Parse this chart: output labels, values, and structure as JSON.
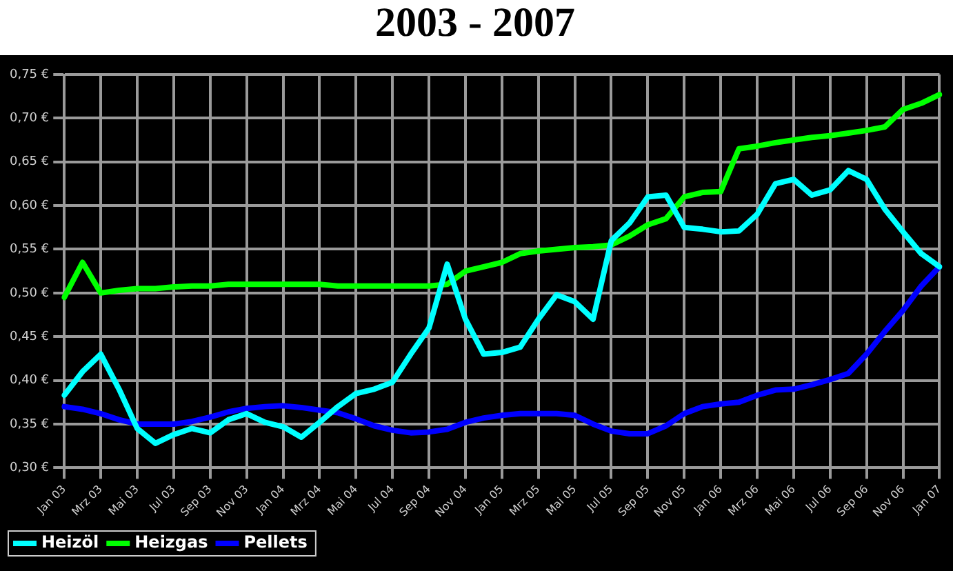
{
  "chart_data": {
    "type": "line",
    "title": "2003 - 2007",
    "categories": [
      "Jan 03",
      null,
      "Mrz 03",
      null,
      "Mai 03",
      null,
      "Jul 03",
      null,
      "Sep 03",
      null,
      "Nov 03",
      null,
      "Jan 04",
      null,
      "Mrz 04",
      null,
      "Mai 04",
      null,
      "Jul 04",
      null,
      "Sep 04",
      null,
      "Nov 04",
      null,
      "Jan 05",
      null,
      "Mrz 05",
      null,
      "Mai 05",
      null,
      "Jul 05",
      null,
      "Sep 05",
      null,
      "Nov 05",
      null,
      "Jan 06",
      null,
      "Mrz 06",
      null,
      "Mai 06",
      null,
      "Jul 06",
      null,
      "Sep 06",
      null,
      "Nov 06",
      null,
      "Jan 07"
    ],
    "series": [
      {
        "name": "Heizöl",
        "color": "#00ffff",
        "values": [
          0.383,
          0.41,
          0.43,
          0.39,
          0.345,
          0.328,
          0.338,
          0.345,
          0.34,
          0.355,
          0.362,
          0.352,
          0.347,
          0.335,
          0.352,
          0.37,
          0.385,
          0.39,
          0.398,
          0.43,
          0.46,
          0.533,
          0.47,
          0.43,
          0.432,
          0.438,
          0.47,
          0.498,
          0.49,
          0.47,
          0.56,
          0.58,
          0.61,
          0.612,
          0.575,
          0.573,
          0.57,
          0.571,
          0.59,
          0.625,
          0.63,
          0.612,
          0.618,
          0.64,
          0.63,
          0.596,
          0.57,
          0.545,
          0.53
        ]
      },
      {
        "name": "Heizgas",
        "color": "#00ff00",
        "values": [
          0.495,
          0.535,
          0.5,
          0.503,
          0.505,
          0.505,
          0.507,
          0.508,
          0.508,
          0.51,
          0.51,
          0.51,
          0.51,
          0.51,
          0.51,
          0.508,
          0.508,
          0.508,
          0.508,
          0.508,
          0.508,
          0.51,
          0.525,
          0.53,
          0.535,
          0.545,
          0.548,
          0.55,
          0.552,
          0.553,
          0.555,
          0.565,
          0.578,
          0.585,
          0.61,
          0.615,
          0.616,
          0.665,
          0.668,
          0.672,
          0.675,
          0.678,
          0.68,
          0.683,
          0.686,
          0.69,
          0.71,
          0.717,
          0.727
        ]
      },
      {
        "name": "Pellets",
        "color": "#0000ff",
        "values": [
          0.37,
          0.367,
          0.362,
          0.355,
          0.35,
          0.35,
          0.35,
          0.353,
          0.358,
          0.364,
          0.368,
          0.37,
          0.371,
          0.369,
          0.366,
          0.363,
          0.356,
          0.348,
          0.343,
          0.34,
          0.341,
          0.344,
          0.352,
          0.357,
          0.36,
          0.362,
          0.362,
          0.362,
          0.36,
          0.35,
          0.342,
          0.339,
          0.339,
          0.348,
          0.362,
          0.37,
          0.373,
          0.375,
          0.383,
          0.389,
          0.39,
          0.395,
          0.401,
          0.408,
          0.43,
          0.456,
          0.48,
          0.508,
          0.53
        ]
      }
    ],
    "ylim": [
      0.3,
      0.75
    ],
    "yticks": [
      {
        "value": 0.3,
        "label": "0,30 €"
      },
      {
        "value": 0.35,
        "label": "0,35 €"
      },
      {
        "value": 0.4,
        "label": "0,40 €"
      },
      {
        "value": 0.45,
        "label": "0,45 €"
      },
      {
        "value": 0.5,
        "label": "0,50 €"
      },
      {
        "value": 0.55,
        "label": "0,55 €"
      },
      {
        "value": 0.6,
        "label": "0,60 €"
      },
      {
        "value": 0.65,
        "label": "0,65 €"
      },
      {
        "value": 0.7,
        "label": "0,70 €"
      },
      {
        "value": 0.75,
        "label": "0,75 €"
      }
    ],
    "grid": true,
    "legend": "bottom left",
    "marker": "none",
    "line_style": "solid"
  }
}
